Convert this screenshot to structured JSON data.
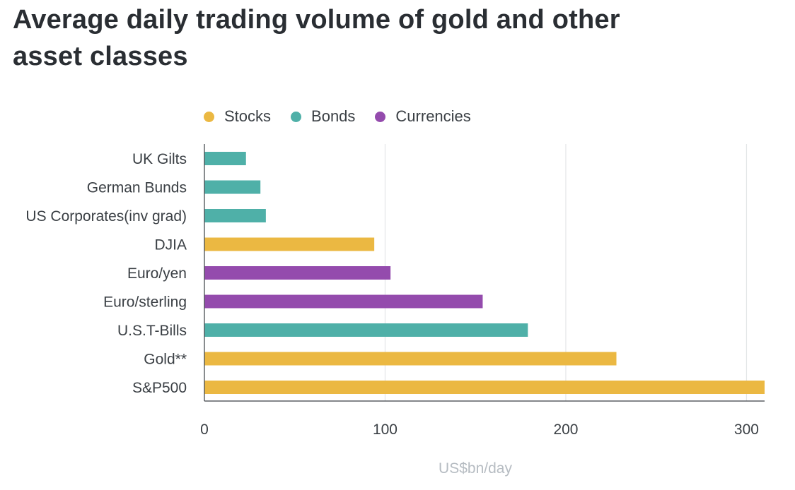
{
  "title": "Average daily trading volume of gold and other asset classes",
  "colors": {
    "Stocks": "#ebb842",
    "Bonds": "#4fb0a8",
    "Currencies": "#944bad"
  },
  "chart_data": {
    "type": "bar",
    "orientation": "horizontal",
    "title": "Average daily trading volume of gold and other asset classes",
    "xlabel": "US$bn/day",
    "ylabel": "",
    "xlim": [
      0,
      310
    ],
    "xticks": [
      0,
      100,
      200,
      300
    ],
    "grid": true,
    "legend": [
      "Stocks",
      "Bonds",
      "Currencies"
    ],
    "legend_position": "top",
    "categories": [
      "UK Gilts",
      "German Bunds",
      "US Corporates(inv grad)",
      "DJIA",
      "Euro/yen",
      "Euro/sterling",
      "U.S.T-Bills",
      "Gold**",
      "S&P500"
    ],
    "values": [
      23,
      31,
      34,
      94,
      103,
      154,
      179,
      228,
      310
    ],
    "groups": [
      "Bonds",
      "Bonds",
      "Bonds",
      "Stocks",
      "Currencies",
      "Currencies",
      "Bonds",
      "Stocks",
      "Stocks"
    ]
  }
}
